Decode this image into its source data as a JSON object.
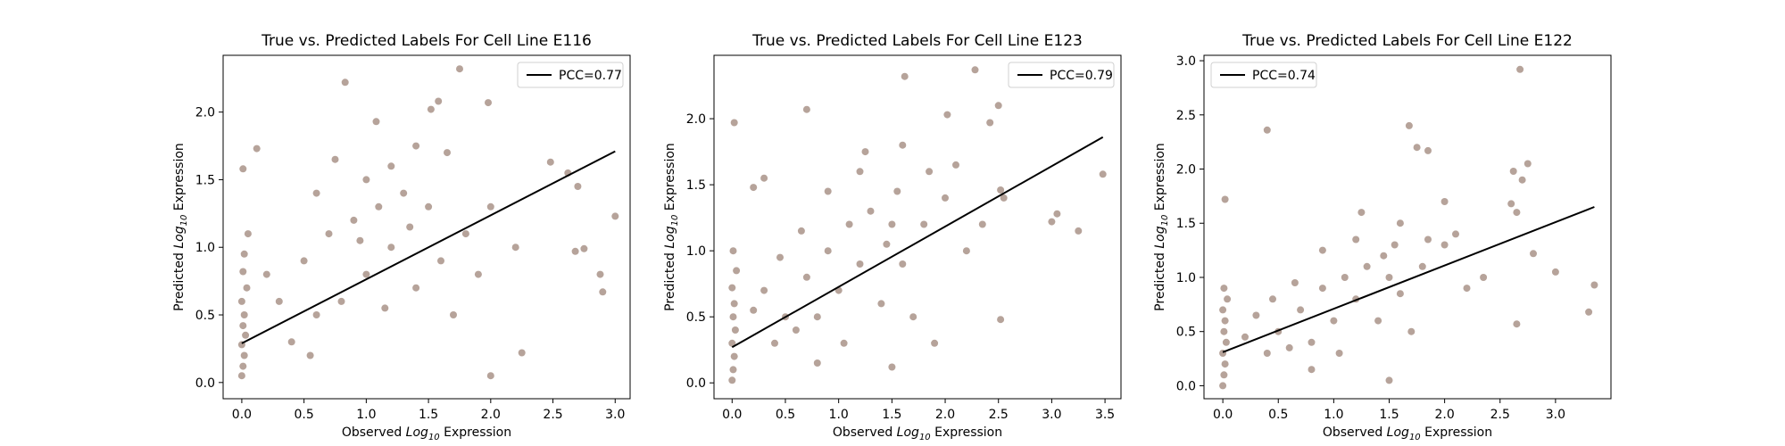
{
  "chart_data": [
    {
      "type": "scatter",
      "title": "True vs. Predicted Labels For Cell Line E116",
      "xlabel": "Observed Log10 Expression",
      "ylabel": "Predicted Log10 Expression",
      "xlim": [
        -0.15,
        3.12
      ],
      "ylim": [
        -0.12,
        2.42
      ],
      "xticks": [
        "0.0",
        "0.5",
        "1.0",
        "1.5",
        "2.0",
        "2.5",
        "3.0"
      ],
      "yticks": [
        "0.0",
        "0.5",
        "1.0",
        "1.5",
        "2.0"
      ],
      "legend": {
        "label": "PCC=0.77",
        "position": "top-right"
      },
      "fit_line": {
        "x": [
          0.0,
          3.0
        ],
        "y": [
          0.29,
          1.71
        ]
      },
      "point_color": "#b09b91",
      "series": [
        {
          "values": [
            [
              0.0,
              0.05
            ],
            [
              0.01,
              0.12
            ],
            [
              0.02,
              0.2
            ],
            [
              0.0,
              0.28
            ],
            [
              0.03,
              0.35
            ],
            [
              0.01,
              0.42
            ],
            [
              0.02,
              0.5
            ],
            [
              0.0,
              0.6
            ],
            [
              0.04,
              0.7
            ],
            [
              0.01,
              0.82
            ],
            [
              0.02,
              0.95
            ],
            [
              0.05,
              1.1
            ],
            [
              0.01,
              1.58
            ],
            [
              0.12,
              1.73
            ],
            [
              0.83,
              2.22
            ],
            [
              1.75,
              2.32
            ],
            [
              1.58,
              2.08
            ],
            [
              1.52,
              2.02
            ],
            [
              1.98,
              2.07
            ],
            [
              1.08,
              1.93
            ],
            [
              2.48,
              1.63
            ],
            [
              2.7,
              1.45
            ],
            [
              2.62,
              1.55
            ],
            [
              3.0,
              1.23
            ],
            [
              2.88,
              0.8
            ],
            [
              2.9,
              0.67
            ],
            [
              2.75,
              0.99
            ],
            [
              2.68,
              0.97
            ],
            [
              2.25,
              0.22
            ],
            [
              2.0,
              0.05
            ],
            [
              0.5,
              0.9
            ],
            [
              0.7,
              1.1
            ],
            [
              0.9,
              1.2
            ],
            [
              1.1,
              1.3
            ],
            [
              1.3,
              1.4
            ],
            [
              1.5,
              1.3
            ],
            [
              1.2,
              1.0
            ],
            [
              1.0,
              0.8
            ],
            [
              0.8,
              0.6
            ],
            [
              0.6,
              0.5
            ],
            [
              0.4,
              0.3
            ],
            [
              0.3,
              0.6
            ],
            [
              0.2,
              0.8
            ],
            [
              1.4,
              0.7
            ],
            [
              1.6,
              0.9
            ],
            [
              1.8,
              1.1
            ],
            [
              2.0,
              1.3
            ],
            [
              1.7,
              0.5
            ],
            [
              1.9,
              0.8
            ],
            [
              2.2,
              1.0
            ],
            [
              1.2,
              1.6
            ],
            [
              1.4,
              1.75
            ],
            [
              0.6,
              1.4
            ],
            [
              0.75,
              1.65
            ],
            [
              1.0,
              1.5
            ],
            [
              1.65,
              1.7
            ],
            [
              1.35,
              1.15
            ],
            [
              0.95,
              1.05
            ],
            [
              1.15,
              0.55
            ],
            [
              0.55,
              0.2
            ]
          ]
        }
      ]
    },
    {
      "type": "scatter",
      "title": "True vs. Predicted Labels For Cell Line E123",
      "xlabel": "Observed Log10 Expression",
      "ylabel": "Predicted Log10 Expression",
      "xlim": [
        -0.17,
        3.65
      ],
      "ylim": [
        -0.12,
        2.48
      ],
      "xticks": [
        "0.0",
        "0.5",
        "1.0",
        "1.5",
        "2.0",
        "2.5",
        "3.0",
        "3.5"
      ],
      "yticks": [
        "0.0",
        "0.5",
        "1.0",
        "1.5",
        "2.0"
      ],
      "legend": {
        "label": "PCC=0.79",
        "position": "top-right"
      },
      "fit_line": {
        "x": [
          0.0,
          3.48
        ],
        "y": [
          0.27,
          1.86
        ]
      },
      "point_color": "#b09b91",
      "series": [
        {
          "values": [
            [
              0.0,
              0.02
            ],
            [
              0.01,
              0.1
            ],
            [
              0.02,
              0.2
            ],
            [
              0.0,
              0.3
            ],
            [
              0.03,
              0.4
            ],
            [
              0.01,
              0.5
            ],
            [
              0.02,
              0.6
            ],
            [
              0.0,
              0.72
            ],
            [
              0.04,
              0.85
            ],
            [
              0.01,
              1.0
            ],
            [
              0.02,
              1.97
            ],
            [
              0.3,
              1.55
            ],
            [
              0.2,
              1.48
            ],
            [
              0.7,
              2.07
            ],
            [
              1.62,
              2.32
            ],
            [
              2.28,
              2.37
            ],
            [
              2.02,
              2.03
            ],
            [
              2.5,
              2.1
            ],
            [
              2.42,
              1.97
            ],
            [
              2.52,
              1.46
            ],
            [
              2.55,
              1.4
            ],
            [
              3.0,
              1.22
            ],
            [
              3.05,
              1.28
            ],
            [
              3.25,
              1.15
            ],
            [
              3.48,
              1.58
            ],
            [
              2.52,
              0.48
            ],
            [
              1.9,
              0.3
            ],
            [
              1.5,
              0.12
            ],
            [
              0.5,
              0.5
            ],
            [
              0.7,
              0.8
            ],
            [
              0.9,
              1.0
            ],
            [
              1.1,
              1.2
            ],
            [
              1.3,
              1.3
            ],
            [
              1.5,
              1.2
            ],
            [
              1.2,
              0.9
            ],
            [
              1.0,
              0.7
            ],
            [
              0.8,
              0.5
            ],
            [
              0.6,
              0.4
            ],
            [
              0.4,
              0.3
            ],
            [
              0.3,
              0.7
            ],
            [
              1.4,
              0.6
            ],
            [
              1.6,
              0.9
            ],
            [
              1.8,
              1.2
            ],
            [
              2.0,
              1.4
            ],
            [
              1.7,
              0.5
            ],
            [
              2.2,
              1.0
            ],
            [
              1.2,
              1.6
            ],
            [
              0.9,
              1.45
            ],
            [
              1.6,
              1.8
            ],
            [
              1.45,
              1.05
            ],
            [
              0.65,
              1.15
            ],
            [
              2.1,
              1.65
            ],
            [
              0.2,
              0.55
            ],
            [
              1.05,
              0.3
            ],
            [
              2.35,
              1.2
            ],
            [
              1.85,
              1.6
            ],
            [
              0.45,
              0.95
            ],
            [
              1.25,
              1.75
            ],
            [
              0.8,
              0.15
            ],
            [
              1.55,
              1.45
            ]
          ]
        }
      ]
    },
    {
      "type": "scatter",
      "title": "True vs. Predicted Labels For Cell Line E122",
      "xlabel": "Observed Log10 Expression",
      "ylabel": "Predicted Log10 Expression",
      "xlim": [
        -0.17,
        3.5
      ],
      "ylim": [
        -0.12,
        3.05
      ],
      "xticks": [
        "0.0",
        "0.5",
        "1.0",
        "1.5",
        "2.0",
        "2.5",
        "3.0"
      ],
      "yticks": [
        "0.0",
        "0.5",
        "1.0",
        "1.5",
        "2.0",
        "2.5",
        "3.0"
      ],
      "legend": {
        "label": "PCC=0.74",
        "position": "top-left"
      },
      "fit_line": {
        "x": [
          0.0,
          3.35
        ],
        "y": [
          0.31,
          1.65
        ]
      },
      "point_color": "#b09b91",
      "series": [
        {
          "values": [
            [
              0.0,
              0.0
            ],
            [
              0.01,
              0.1
            ],
            [
              0.02,
              0.2
            ],
            [
              0.0,
              0.3
            ],
            [
              0.03,
              0.4
            ],
            [
              0.01,
              0.5
            ],
            [
              0.02,
              0.6
            ],
            [
              0.0,
              0.7
            ],
            [
              0.04,
              0.8
            ],
            [
              0.01,
              0.9
            ],
            [
              0.02,
              1.72
            ],
            [
              0.4,
              2.36
            ],
            [
              1.68,
              2.4
            ],
            [
              2.68,
              2.92
            ],
            [
              1.75,
              2.2
            ],
            [
              1.85,
              2.17
            ],
            [
              2.0,
              1.7
            ],
            [
              2.6,
              1.68
            ],
            [
              2.7,
              1.9
            ],
            [
              2.75,
              2.05
            ],
            [
              2.65,
              1.6
            ],
            [
              2.62,
              1.98
            ],
            [
              3.0,
              1.05
            ],
            [
              3.3,
              0.68
            ],
            [
              3.35,
              0.93
            ],
            [
              2.8,
              1.22
            ],
            [
              2.65,
              0.57
            ],
            [
              1.5,
              0.05
            ],
            [
              0.5,
              0.5
            ],
            [
              0.7,
              0.7
            ],
            [
              0.9,
              0.9
            ],
            [
              1.1,
              1.0
            ],
            [
              1.3,
              1.1
            ],
            [
              1.5,
              1.0
            ],
            [
              1.2,
              0.8
            ],
            [
              1.0,
              0.6
            ],
            [
              0.8,
              0.4
            ],
            [
              0.6,
              0.35
            ],
            [
              0.4,
              0.3
            ],
            [
              0.3,
              0.65
            ],
            [
              1.4,
              0.6
            ],
            [
              1.6,
              0.85
            ],
            [
              1.8,
              1.1
            ],
            [
              2.0,
              1.3
            ],
            [
              1.7,
              0.5
            ],
            [
              2.2,
              0.9
            ],
            [
              1.2,
              1.35
            ],
            [
              0.9,
              1.25
            ],
            [
              1.6,
              1.5
            ],
            [
              1.45,
              1.2
            ],
            [
              0.65,
              0.95
            ],
            [
              2.1,
              1.4
            ],
            [
              0.2,
              0.45
            ],
            [
              1.05,
              0.3
            ],
            [
              2.35,
              1.0
            ],
            [
              1.85,
              1.35
            ],
            [
              0.45,
              0.8
            ],
            [
              1.25,
              1.6
            ],
            [
              0.8,
              0.15
            ],
            [
              1.55,
              1.3
            ]
          ]
        }
      ]
    }
  ]
}
